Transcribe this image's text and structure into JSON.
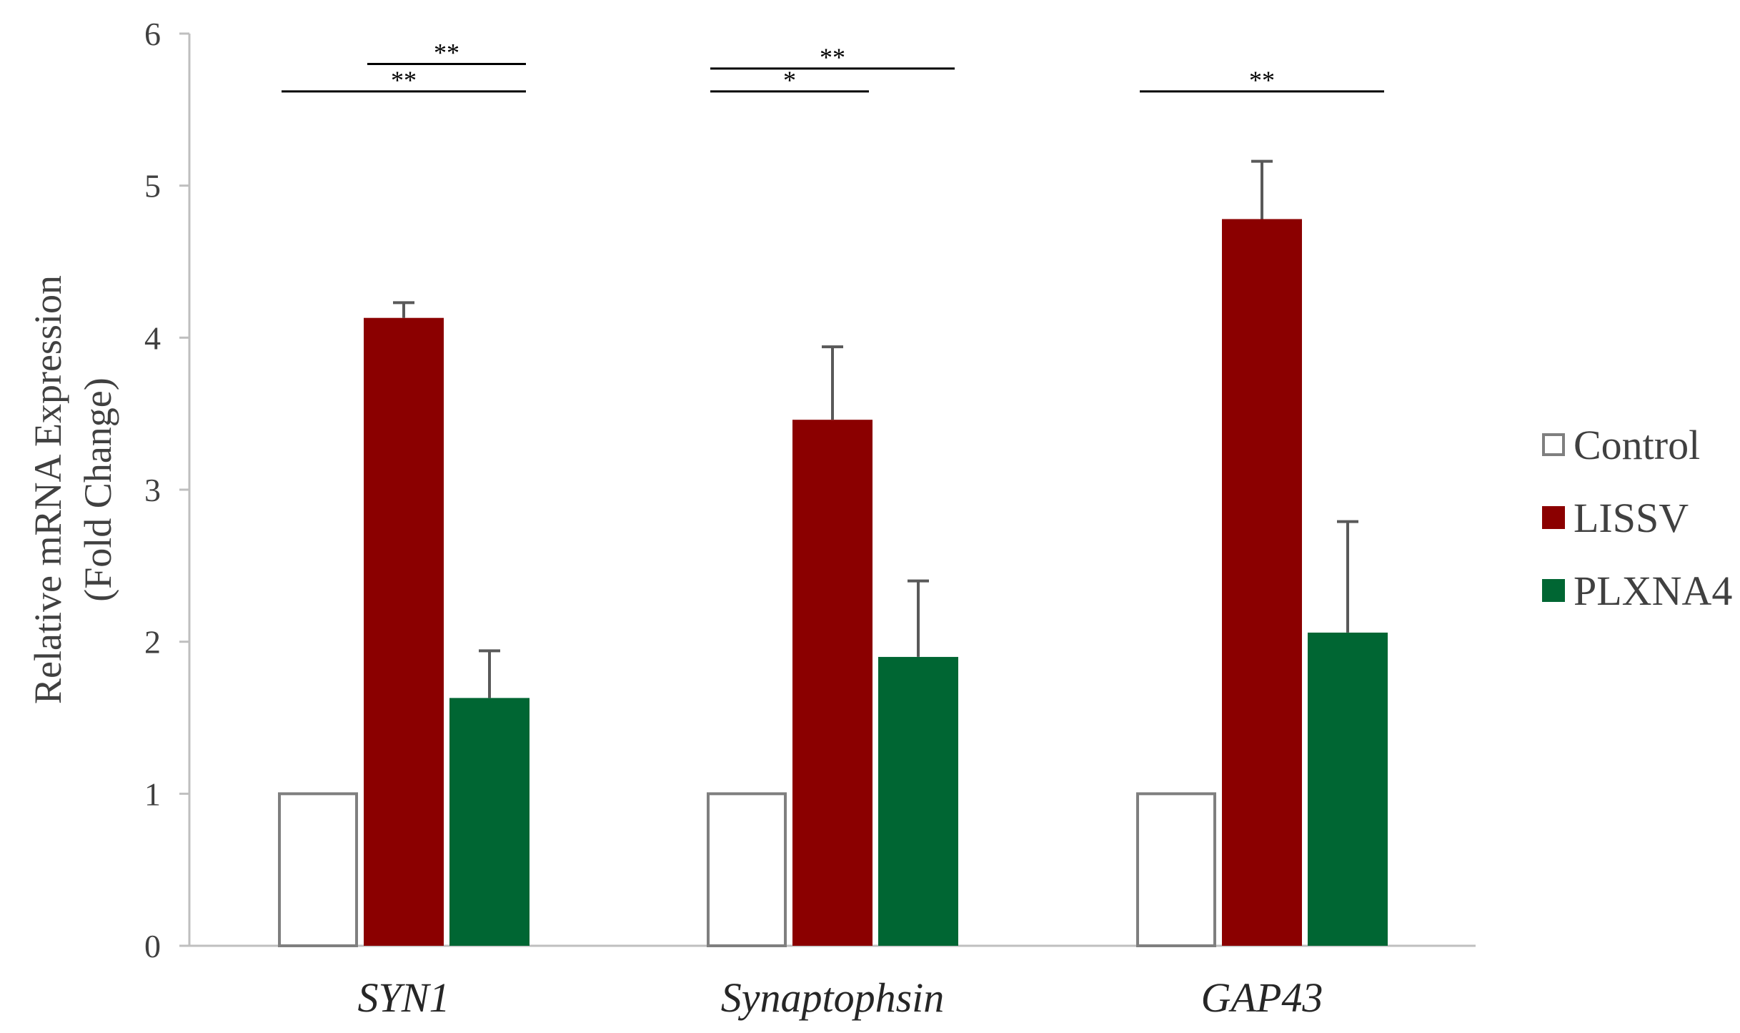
{
  "chart_data": {
    "type": "bar",
    "title": "",
    "xlabel": "",
    "ylabel_line1": "Relative mRNA Expression",
    "ylabel_line2": "(Fold Change)",
    "ylim": [
      0,
      6
    ],
    "yticks": [
      "0",
      "1",
      "2",
      "3",
      "4",
      "5",
      "6"
    ],
    "categories": [
      "SYN1",
      "Synaptophsin",
      "GAP43"
    ],
    "series": [
      {
        "name": "Control",
        "values": [
          1.0,
          1.0,
          1.0
        ],
        "errors": [
          0,
          0,
          0
        ],
        "fill": "#ffffff",
        "stroke": "#7f7f7f"
      },
      {
        "name": "LISSV",
        "values": [
          4.13,
          3.46,
          4.78
        ],
        "errors": [
          0.1,
          0.48,
          0.38
        ],
        "fill": "#8b0000",
        "stroke": "#8b0000"
      },
      {
        "name": "PLXNA4",
        "values": [
          1.63,
          1.9,
          2.06
        ],
        "errors": [
          0.31,
          0.5,
          0.73
        ],
        "fill": "#006633",
        "stroke": "#006633"
      }
    ],
    "legend_position": "right",
    "grid": false,
    "significance": [
      {
        "category": 0,
        "from_series": 1,
        "to_series": 2,
        "y": 5.8,
        "label": "**"
      },
      {
        "category": 0,
        "from_series": 0,
        "to_series": 2,
        "y": 5.62,
        "label": "**"
      },
      {
        "category": 1,
        "from_series": 0,
        "to_series": 2,
        "y": 5.77,
        "label": "**"
      },
      {
        "category": 1,
        "from_series": 0,
        "to_series": 1,
        "y": 5.62,
        "label": "*"
      },
      {
        "category": 2,
        "from_series": 0,
        "to_series": 2,
        "y": 5.62,
        "label": "**"
      }
    ],
    "colors": {
      "axis": "#bfbfbf",
      "error_bar": "#595959",
      "sig_line": "#000000"
    }
  }
}
